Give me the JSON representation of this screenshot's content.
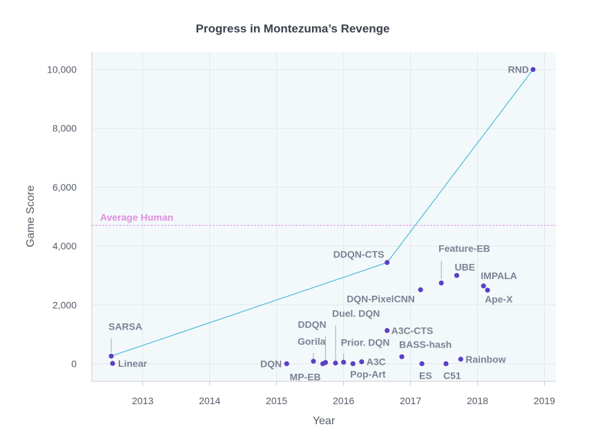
{
  "chart_data": {
    "type": "scatter",
    "title": "Progress in Montezuma’s Revenge",
    "xlabel": "Year",
    "ylabel": "Game Score",
    "xlim": [
      2012.24,
      2019.17
    ],
    "ylim": [
      -600,
      10600
    ],
    "x_ticks": [
      2013,
      2014,
      2015,
      2016,
      2017,
      2018,
      2019
    ],
    "x_tick_labels": [
      "2013",
      "2014",
      "2015",
      "2016",
      "2017",
      "2018",
      "2019"
    ],
    "y_ticks": [
      0,
      2000,
      4000,
      6000,
      8000,
      10000
    ],
    "y_tick_labels": [
      "0",
      "2,000",
      "4,000",
      "6,000",
      "8,000",
      "10,000"
    ],
    "grid": true,
    "reference_line": {
      "label": "Average Human",
      "value": 4700
    },
    "frontier": {
      "x": [
        2012.53,
        2016.65,
        2018.83
      ],
      "y": [
        259,
        3439,
        10000
      ]
    },
    "points": [
      {
        "name": "SARSA",
        "x": 2012.53,
        "y": 259
      },
      {
        "name": "Linear",
        "x": 2012.55,
        "y": 10
      },
      {
        "name": "DQN",
        "x": 2015.15,
        "y": 0
      },
      {
        "name": "Gorila",
        "x": 2015.55,
        "y": 84
      },
      {
        "name": "MP-EB",
        "x": 2015.69,
        "y": 0
      },
      {
        "name": "DDQN",
        "x": 2015.73,
        "y": 42
      },
      {
        "name": "Duel. DQN",
        "x": 2015.88,
        "y": 22
      },
      {
        "name": "Prior. DQN",
        "x": 2016.0,
        "y": 51
      },
      {
        "name": "Pop-Art",
        "x": 2016.14,
        "y": 0
      },
      {
        "name": "A3C",
        "x": 2016.27,
        "y": 67
      },
      {
        "name": "A3C-CTS",
        "x": 2016.65,
        "y": 1127
      },
      {
        "name": "DDQN-CTS",
        "x": 2016.65,
        "y": 3439
      },
      {
        "name": "BASS-hash",
        "x": 2016.87,
        "y": 238
      },
      {
        "name": "DQN-PixelCNN",
        "x": 2017.15,
        "y": 2514
      },
      {
        "name": "ES",
        "x": 2017.17,
        "y": 0
      },
      {
        "name": "Feature-EB",
        "x": 2017.46,
        "y": 2745
      },
      {
        "name": "C51",
        "x": 2017.53,
        "y": 0
      },
      {
        "name": "UBE",
        "x": 2017.69,
        "y": 3000
      },
      {
        "name": "Rainbow",
        "x": 2017.75,
        "y": 154
      },
      {
        "name": "IMPALA",
        "x": 2018.09,
        "y": 2643
      },
      {
        "name": "Ape-X",
        "x": 2018.15,
        "y": 2500
      },
      {
        "name": "RND",
        "x": 2018.83,
        "y": 10000
      }
    ]
  },
  "colors": {
    "plot_bg": "#f3f9fa",
    "grid": "#e2e7ec",
    "frame": "#c7ccd3",
    "point": "#5d3fc4",
    "frontier": "#4ab8dc",
    "human": "#df8ddf",
    "label": "#7d8195"
  }
}
